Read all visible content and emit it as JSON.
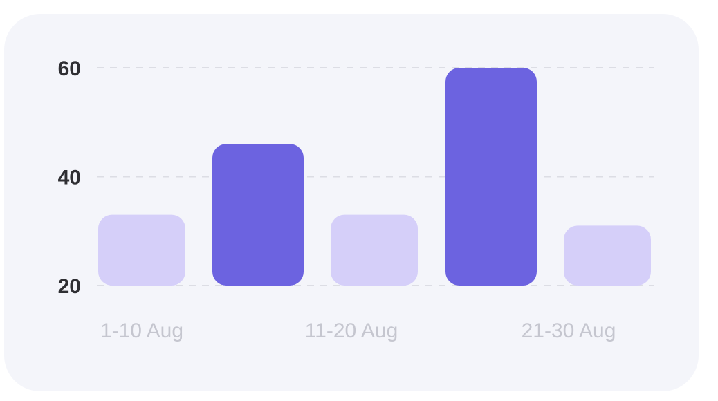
{
  "chart_data": {
    "type": "bar",
    "categories": [
      "1-10 Aug",
      "",
      "11-20 Aug",
      "",
      "21-30 Aug"
    ],
    "x_tick_labels": [
      "1-10 Aug",
      "11-20 Aug",
      "21-30 Aug"
    ],
    "values": [
      33,
      46,
      33,
      60,
      31
    ],
    "baseline": 20,
    "ylim": [
      20,
      60
    ],
    "yticks": [
      20,
      40,
      60
    ],
    "grid": true,
    "grid_style": "dashed horizontal",
    "title": "",
    "xlabel": "",
    "ylabel": "",
    "colors": {
      "highlight": "#6c63e0",
      "muted": "#d5cff9",
      "grid": "#dcdde4",
      "card_background": "#f4f5fa"
    },
    "highlighted": [
      false,
      true,
      false,
      true,
      false
    ]
  }
}
